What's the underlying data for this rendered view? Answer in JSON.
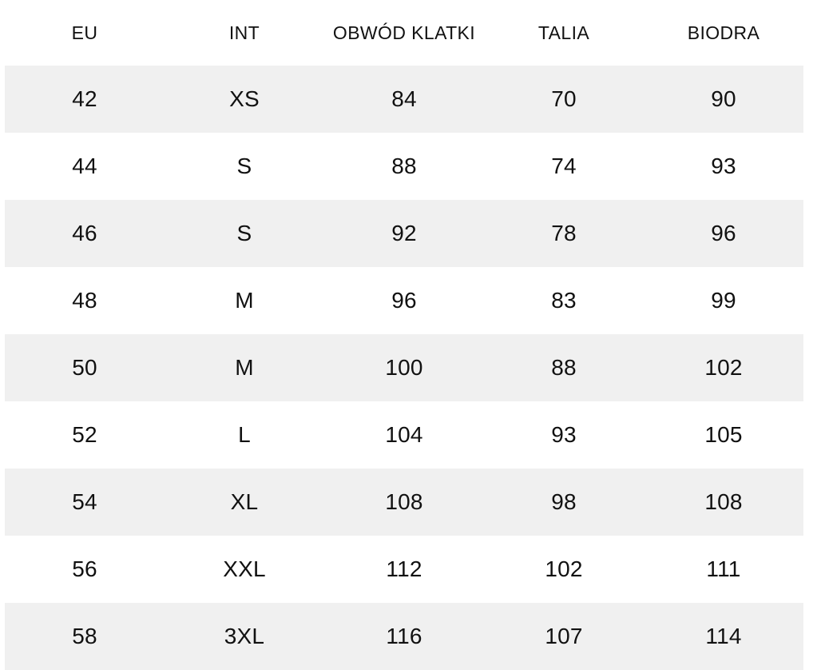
{
  "chart_data": {
    "type": "table",
    "title": "",
    "columns": [
      "EU",
      "INT",
      "OBWÓD KLATKI",
      "TALIA",
      "BIODRA"
    ],
    "rows": [
      [
        "42",
        "XS",
        "84",
        "70",
        "90"
      ],
      [
        "44",
        "S",
        "88",
        "74",
        "93"
      ],
      [
        "46",
        "S",
        "92",
        "78",
        "96"
      ],
      [
        "48",
        "M",
        "96",
        "83",
        "99"
      ],
      [
        "50",
        "M",
        "100",
        "88",
        "102"
      ],
      [
        "52",
        "L",
        "104",
        "93",
        "105"
      ],
      [
        "54",
        "XL",
        "108",
        "98",
        "108"
      ],
      [
        "56",
        "XXL",
        "112",
        "102",
        "111"
      ],
      [
        "58",
        "3XL",
        "116",
        "107",
        "114"
      ]
    ],
    "layout": {
      "striped_rows": "odd data rows shaded",
      "alignment": "center",
      "grid": "off"
    }
  },
  "colors": {
    "stripe": "#f0f0f0",
    "background": "#ffffff",
    "text": "#111111"
  }
}
